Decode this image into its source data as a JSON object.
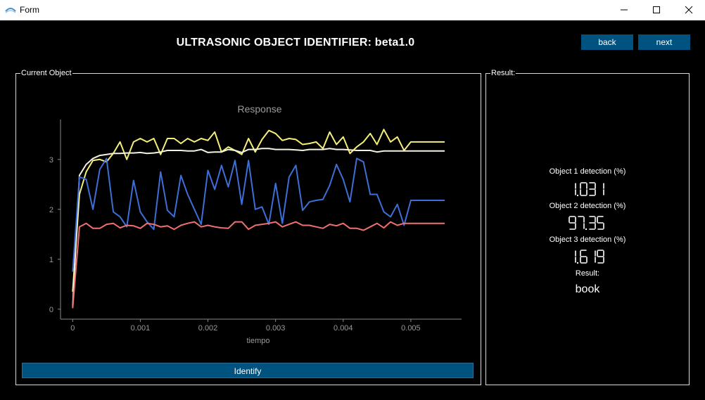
{
  "window": {
    "title": "Form",
    "controls": {
      "minimize": "minimize",
      "maximize": "maximize",
      "close": "close"
    }
  },
  "header": {
    "title": "ULTRASONIC OBJECT IDENTIFIER: beta1.0",
    "back_label": "back",
    "next_label": "next"
  },
  "current_object": {
    "group_label": "Current Object",
    "identify_label": "Identify"
  },
  "result": {
    "group_label": "Result:",
    "object1_label": "Object 1 detection (%)",
    "object1_value": "1.031",
    "object2_label": "Object 2 detection (%)",
    "object2_value": "97.35",
    "object3_label": "Object 3 detection (%)",
    "object3_value": "1.619",
    "result_label": "Result:",
    "result_value": "book"
  },
  "colors": {
    "accent": "#00527f",
    "background": "#000000",
    "yellow_series": "#f5ef78",
    "white_series": "#f2f2e0",
    "blue_series": "#3d6fd6",
    "red_series": "#f07070"
  },
  "chart_data": {
    "type": "line",
    "title": "Response",
    "xlabel": "tiempo",
    "ylabel": "",
    "xlim": [
      -0.00018,
      0.00575
    ],
    "ylim": [
      -0.2,
      3.8
    ],
    "x_ticks": [
      "0",
      "0.001",
      "0.002",
      "0.003",
      "0.004",
      "0.005"
    ],
    "y_ticks": [
      "0",
      "1",
      "2",
      "3"
    ],
    "x": [
      0,
      0.0001,
      0.0002,
      0.0003,
      0.0004,
      0.0005,
      0.0006,
      0.0007,
      0.0008,
      0.0009,
      0.001,
      0.0011,
      0.0012,
      0.0013,
      0.0014,
      0.0015,
      0.0016,
      0.0017,
      0.0018,
      0.0019,
      0.002,
      0.0021,
      0.0022,
      0.0023,
      0.0024,
      0.0025,
      0.0026,
      0.0027,
      0.0028,
      0.0029,
      0.003,
      0.0031,
      0.0032,
      0.0033,
      0.0034,
      0.0035,
      0.0036,
      0.0037,
      0.0038,
      0.0039,
      0.004,
      0.0041,
      0.0042,
      0.0043,
      0.0044,
      0.0045,
      0.0046,
      0.0047,
      0.0048,
      0.0049,
      0.005,
      0.0051,
      0.0052,
      0.0053,
      0.0054,
      0.0055
    ],
    "series": [
      {
        "color": "#f5ef78",
        "values": [
          0.35,
          2.3,
          2.75,
          2.98,
          3.0,
          2.95,
          3.12,
          3.35,
          3.0,
          3.35,
          3.42,
          3.35,
          3.42,
          3.1,
          3.42,
          3.42,
          3.32,
          3.42,
          3.35,
          3.42,
          3.38,
          3.55,
          3.15,
          3.25,
          3.18,
          3.1,
          3.42,
          3.15,
          3.4,
          3.58,
          3.52,
          3.38,
          3.42,
          3.4,
          3.3,
          3.32,
          3.35,
          3.22,
          3.55,
          3.3,
          3.45,
          3.12,
          3.25,
          3.35,
          3.52,
          3.3,
          3.6,
          3.35,
          3.45,
          3.18,
          3.35,
          3.35,
          3.35,
          3.35,
          3.35,
          3.35
        ]
      },
      {
        "color": "#f2f2e0",
        "values": [
          0.05,
          2.68,
          2.9,
          3.02,
          3.08,
          3.1,
          3.12,
          3.12,
          3.13,
          3.13,
          3.14,
          3.12,
          3.13,
          3.15,
          3.18,
          3.18,
          3.18,
          3.17,
          3.17,
          3.2,
          3.14,
          3.15,
          3.15,
          3.2,
          3.18,
          3.14,
          3.2,
          3.2,
          3.22,
          3.22,
          3.2,
          3.2,
          3.2,
          3.19,
          3.18,
          3.2,
          3.2,
          3.2,
          3.22,
          3.2,
          3.2,
          3.19,
          3.18,
          3.18,
          3.18,
          3.15,
          3.17,
          3.17,
          3.17,
          3.17,
          3.17,
          3.17,
          3.17,
          3.17,
          3.17,
          3.17
        ]
      },
      {
        "color": "#3d6fd6",
        "values": [
          0.75,
          2.65,
          2.6,
          2.0,
          2.8,
          3.02,
          1.95,
          1.85,
          1.65,
          2.58,
          1.95,
          1.75,
          1.6,
          2.75,
          1.98,
          1.85,
          2.68,
          2.3,
          2.0,
          1.7,
          2.78,
          2.4,
          2.88,
          2.45,
          2.98,
          2.1,
          2.98,
          2.0,
          2.05,
          1.7,
          2.52,
          1.72,
          2.65,
          2.88,
          1.98,
          2.15,
          2.18,
          2.2,
          2.48,
          2.9,
          2.6,
          2.15,
          3.02,
          2.95,
          2.3,
          2.3,
          1.95,
          1.85,
          2.1,
          1.68,
          2.18,
          2.18,
          2.18,
          2.18,
          2.18,
          2.18
        ]
      },
      {
        "color": "#f07070",
        "values": [
          0.02,
          1.65,
          1.72,
          1.62,
          1.62,
          1.7,
          1.72,
          1.63,
          1.68,
          1.67,
          1.62,
          1.72,
          1.7,
          1.65,
          1.67,
          1.6,
          1.68,
          1.72,
          1.75,
          1.65,
          1.68,
          1.65,
          1.63,
          1.62,
          1.75,
          1.75,
          1.6,
          1.68,
          1.7,
          1.72,
          1.75,
          1.65,
          1.7,
          1.75,
          1.68,
          1.68,
          1.65,
          1.62,
          1.7,
          1.67,
          1.72,
          1.62,
          1.62,
          1.58,
          1.65,
          1.72,
          1.63,
          1.75,
          1.68,
          1.72,
          1.72,
          1.72,
          1.72,
          1.72,
          1.72,
          1.72
        ]
      }
    ]
  }
}
